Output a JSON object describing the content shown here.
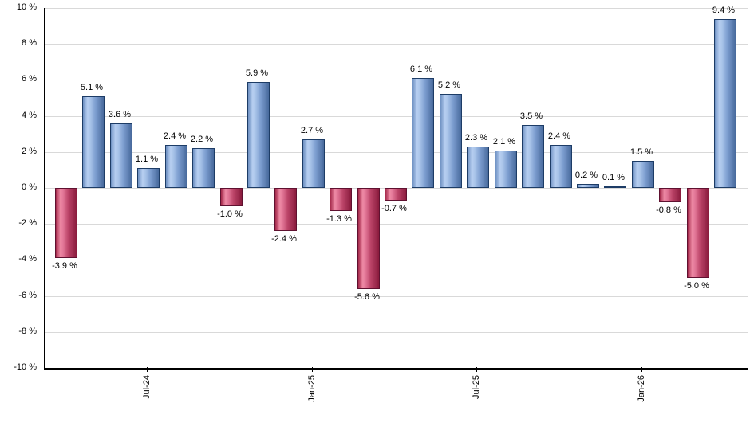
{
  "chart_data": {
    "type": "bar",
    "title": "",
    "xlabel": "",
    "ylabel": "",
    "ylim": [
      -10,
      10
    ],
    "ytick_step": 2,
    "grid": true,
    "legend": false,
    "ytick_values": [
      10,
      8,
      6,
      4,
      2,
      0,
      -2,
      -4,
      -6,
      -8,
      -10
    ],
    "ytick_labels": [
      "10 %",
      "8 %",
      "6 %",
      "4 %",
      "2 %",
      "0 %",
      "-2 %",
      "-4 %",
      "-6 %",
      "-8 %",
      "-10 %"
    ],
    "values": [
      -3.9,
      5.1,
      3.6,
      1.1,
      2.4,
      2.2,
      -1.0,
      5.9,
      -2.4,
      2.7,
      -1.3,
      -5.6,
      -0.7,
      6.1,
      5.2,
      2.3,
      2.1,
      3.5,
      2.4,
      0.2,
      0.1,
      1.5,
      -0.8,
      -5.0,
      9.4
    ],
    "bar_labels": [
      "-3.9 %",
      "5.1 %",
      "3.6 %",
      "1.1 %",
      "2.4 %",
      "2.2 %",
      "-1.0 %",
      "5.9 %",
      "-2.4 %",
      "2.7 %",
      "-1.3 %",
      "-5.6 %",
      "-0.7 %",
      "6.1 %",
      "5.2 %",
      "2.3 %",
      "2.1 %",
      "3.5 %",
      "2.4 %",
      "0.2 %",
      "0.1 %",
      "1.5 %",
      "-0.8 %",
      "-5.0 %",
      "9.4 %"
    ],
    "x_ticks": [
      {
        "bar_index": 3,
        "label": "Jul-24"
      },
      {
        "bar_index": 9,
        "label": "Jan-25"
      },
      {
        "bar_index": 15,
        "label": "Jul-25"
      },
      {
        "bar_index": 21,
        "label": "Jan-26"
      }
    ],
    "colors": {
      "background": "#ffffff",
      "gridline": "#d9d9d9",
      "axis": "#000000",
      "label_text": "#000000",
      "positive_edge": "#1d3c66",
      "positive_gradient": [
        "#6e90c2",
        "#b7cff1",
        "#a9c4e9",
        "#7d9ed0",
        "#47699c"
      ],
      "negative_edge": "#5f1130",
      "negative_gradient": [
        "#a32749",
        "#ee8aa5",
        "#e27797",
        "#bb4468",
        "#8a1b3d"
      ]
    }
  }
}
